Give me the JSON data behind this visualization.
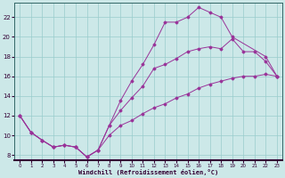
{
  "xlabel": "Windchill (Refroidissement éolien,°C)",
  "bg_color": "#cce8e8",
  "grid_color": "#99cccc",
  "line_color": "#993399",
  "xlim": [
    -0.5,
    23.5
  ],
  "ylim": [
    7.5,
    23.5
  ],
  "xticks": [
    0,
    1,
    2,
    3,
    4,
    5,
    6,
    7,
    8,
    9,
    10,
    11,
    12,
    13,
    14,
    15,
    16,
    17,
    18,
    19,
    20,
    21,
    22,
    23
  ],
  "yticks": [
    8,
    10,
    12,
    14,
    16,
    18,
    20,
    22
  ],
  "line1_x": [
    0,
    1,
    2,
    3,
    4,
    5,
    6,
    7,
    8,
    9,
    10,
    11,
    12,
    13,
    14,
    15,
    16,
    17,
    18,
    19,
    22,
    23
  ],
  "line1_y": [
    12,
    10.3,
    9.5,
    8.8,
    9.0,
    8.8,
    7.8,
    8.5,
    11.0,
    13.5,
    15.5,
    17.2,
    19.2,
    21.5,
    21.5,
    22.0,
    23.0,
    22.5,
    22.0,
    20.0,
    18.0,
    16.0
  ],
  "line2_x": [
    0,
    1,
    2,
    3,
    4,
    5,
    6,
    7,
    8,
    9,
    10,
    11,
    12,
    13,
    14,
    15,
    16,
    17,
    18,
    19,
    20,
    21,
    22,
    23
  ],
  "line2_y": [
    12,
    10.3,
    9.5,
    8.8,
    9.0,
    8.8,
    7.8,
    8.5,
    11.0,
    12.5,
    13.8,
    15.0,
    16.8,
    17.2,
    17.8,
    18.5,
    18.8,
    19.0,
    18.8,
    19.8,
    18.5,
    18.5,
    17.5,
    16.0
  ],
  "line3_x": [
    0,
    1,
    2,
    3,
    4,
    5,
    6,
    7,
    8,
    9,
    10,
    11,
    12,
    13,
    14,
    15,
    16,
    17,
    18,
    19,
    20,
    21,
    22,
    23
  ],
  "line3_y": [
    12,
    10.3,
    9.5,
    8.8,
    9.0,
    8.8,
    7.8,
    8.5,
    10.0,
    11.0,
    11.5,
    12.2,
    12.8,
    13.2,
    13.8,
    14.2,
    14.8,
    15.2,
    15.5,
    15.8,
    16.0,
    16.0,
    16.2,
    16.0
  ]
}
